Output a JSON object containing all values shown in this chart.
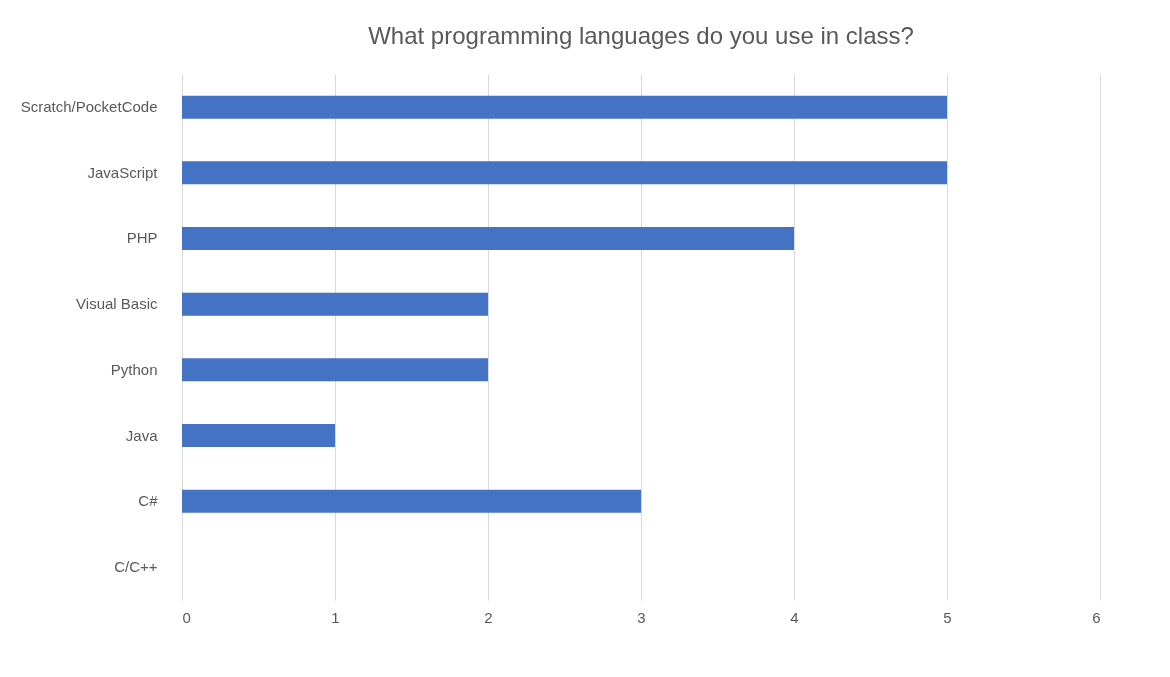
{
  "chart_data": {
    "type": "bar",
    "orientation": "horizontal",
    "title": "What programming languages do you use in class?",
    "categories": [
      "Scratch/PocketCode",
      "JavaScript",
      "PHP",
      "Visual Basic",
      "Python",
      "Java",
      "C#",
      "C/C++"
    ],
    "values": [
      5,
      5,
      4,
      2,
      2,
      1,
      3,
      0
    ],
    "color": "#4472c4",
    "xlim": [
      0,
      6
    ],
    "xticks": [
      0,
      1,
      2,
      3,
      4,
      5,
      6
    ],
    "grid": "x"
  }
}
